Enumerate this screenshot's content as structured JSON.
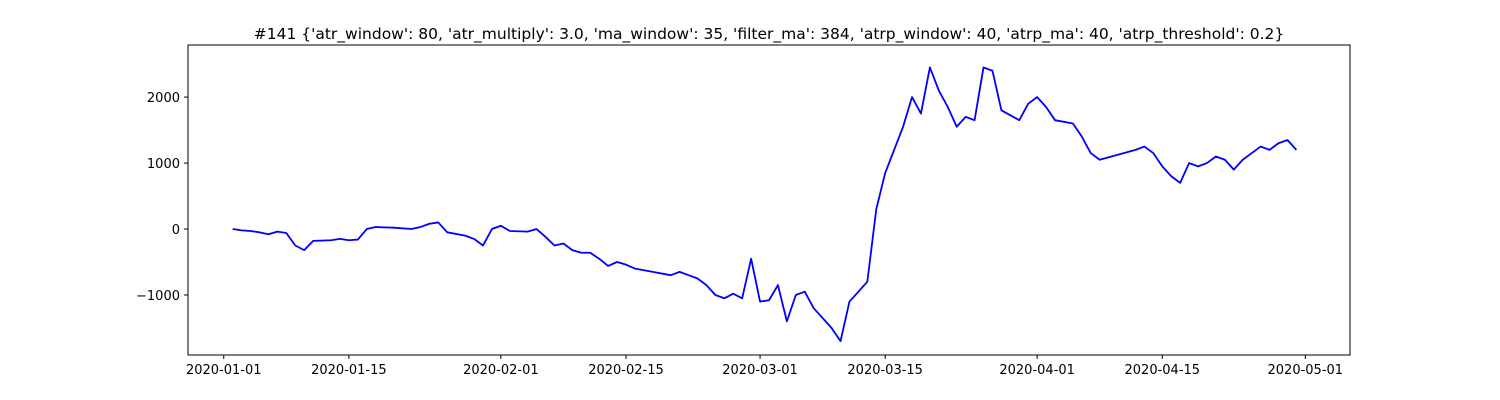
{
  "chart_data": {
    "type": "line",
    "title": "#141 {'atr_window': 80, 'atr_multiply': 3.0, 'ma_window': 35, 'filter_ma': 384, 'atrp_window': 40, 'atrp_ma': 40, 'atrp_threshold': 0.2}",
    "x": [
      "2020-01-02",
      "2020-01-03",
      "2020-01-04",
      "2020-01-05",
      "2020-01-06",
      "2020-01-07",
      "2020-01-08",
      "2020-01-09",
      "2020-01-10",
      "2020-01-11",
      "2020-01-13",
      "2020-01-14",
      "2020-01-15",
      "2020-01-16",
      "2020-01-17",
      "2020-01-18",
      "2020-01-20",
      "2020-01-22",
      "2020-01-23",
      "2020-01-24",
      "2020-01-25",
      "2020-01-26",
      "2020-01-28",
      "2020-01-29",
      "2020-01-30",
      "2020-01-31",
      "2020-02-01",
      "2020-02-02",
      "2020-02-04",
      "2020-02-05",
      "2020-02-06",
      "2020-02-07",
      "2020-02-08",
      "2020-02-09",
      "2020-02-10",
      "2020-02-11",
      "2020-02-12",
      "2020-02-13",
      "2020-02-14",
      "2020-02-15",
      "2020-02-16",
      "2020-02-18",
      "2020-02-20",
      "2020-02-21",
      "2020-02-22",
      "2020-02-23",
      "2020-02-24",
      "2020-02-25",
      "2020-02-26",
      "2020-02-27",
      "2020-02-28",
      "2020-02-29",
      "2020-03-01",
      "2020-03-02",
      "2020-03-03",
      "2020-03-04",
      "2020-03-05",
      "2020-03-06",
      "2020-03-07",
      "2020-03-09",
      "2020-03-10",
      "2020-03-11",
      "2020-03-12",
      "2020-03-13",
      "2020-03-14",
      "2020-03-15",
      "2020-03-17",
      "2020-03-18",
      "2020-03-19",
      "2020-03-20",
      "2020-03-21",
      "2020-03-22",
      "2020-03-23",
      "2020-03-24",
      "2020-03-25",
      "2020-03-26",
      "2020-03-27",
      "2020-03-28",
      "2020-03-30",
      "2020-03-31",
      "2020-04-01",
      "2020-04-02",
      "2020-04-03",
      "2020-04-05",
      "2020-04-06",
      "2020-04-07",
      "2020-04-08",
      "2020-04-12",
      "2020-04-13",
      "2020-04-14",
      "2020-04-15",
      "2020-04-16",
      "2020-04-17",
      "2020-04-18",
      "2020-04-19",
      "2020-04-20",
      "2020-04-21",
      "2020-04-22",
      "2020-04-23",
      "2020-04-24",
      "2020-04-26",
      "2020-04-27",
      "2020-04-28",
      "2020-04-29",
      "2020-04-30"
    ],
    "series": [
      {
        "color": "#0000ff",
        "values": [
          0,
          -20,
          -30,
          -50,
          -80,
          -40,
          -60,
          -250,
          -320,
          -180,
          -170,
          -150,
          -170,
          -160,
          0,
          30,
          20,
          0,
          30,
          80,
          100,
          -50,
          -100,
          -150,
          -250,
          0,
          50,
          -30,
          -40,
          0,
          -120,
          -250,
          -220,
          -320,
          -360,
          -360,
          -450,
          -560,
          -500,
          -540,
          -600,
          -650,
          -700,
          -650,
          -700,
          -750,
          -850,
          -1000,
          -1050,
          -980,
          -1050,
          -450,
          -1100,
          -1080,
          -850,
          -1400,
          -1000,
          -950,
          -1200,
          -1500,
          -1700,
          -1100,
          -950,
          -800,
          300,
          850,
          1550,
          2000,
          1750,
          2450,
          2100,
          1850,
          1550,
          1700,
          1650,
          2450,
          2400,
          1800,
          1650,
          1900,
          2000,
          1850,
          1650,
          1600,
          1400,
          1150,
          1050,
          1200,
          1250,
          1150,
          950,
          800,
          700,
          1000,
          950,
          1000,
          1100,
          1050,
          900,
          1050,
          1250,
          1200,
          1300,
          1350,
          1200
        ]
      }
    ],
    "xlim": [
      "2019-12-28",
      "2020-05-06"
    ],
    "xticks": [
      "2020-01-01",
      "2020-01-15",
      "2020-02-01",
      "2020-02-15",
      "2020-03-01",
      "2020-03-15",
      "2020-04-01",
      "2020-04-15",
      "2020-05-01"
    ],
    "ylim": [
      -1910,
      2790
    ],
    "yticks": [
      {
        "value": -1000,
        "label": "−1000"
      },
      0,
      1000,
      2000
    ]
  }
}
